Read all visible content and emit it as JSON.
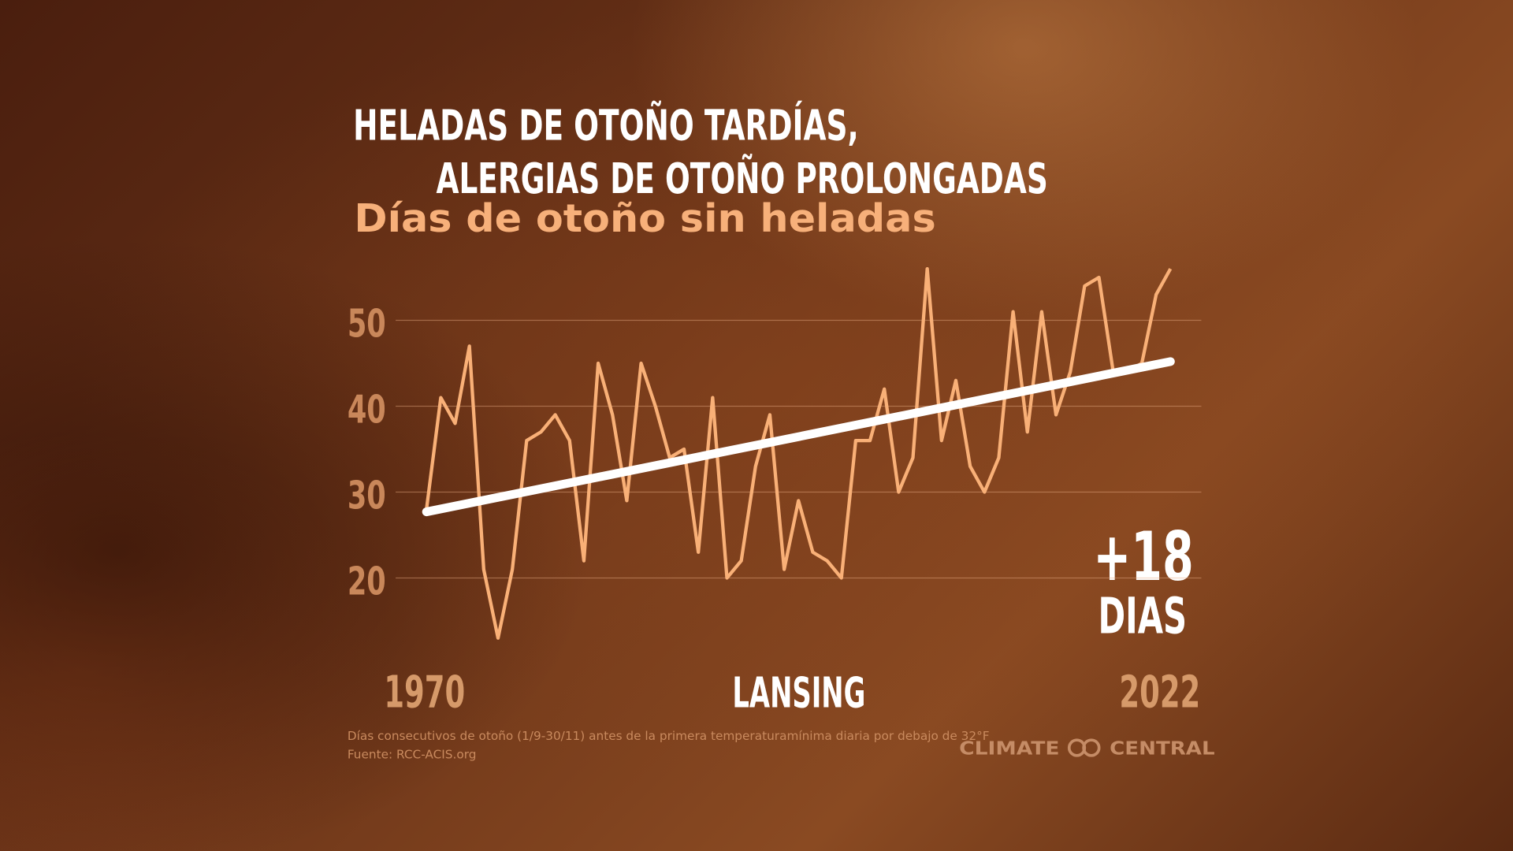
{
  "chart_data": {
    "type": "line",
    "title": [
      "HELADAS DE OTOÑO TARDÍAS,",
      "ALERGIAS DE OTOÑO PROLONGADAS"
    ],
    "subtitle": "Días de otoño sin heladas",
    "x": [
      1970,
      1971,
      1972,
      1973,
      1974,
      1975,
      1976,
      1977,
      1978,
      1979,
      1980,
      1981,
      1982,
      1983,
      1984,
      1985,
      1986,
      1987,
      1988,
      1989,
      1990,
      1991,
      1992,
      1993,
      1994,
      1995,
      1996,
      1997,
      1998,
      1999,
      2000,
      2001,
      2002,
      2003,
      2004,
      2005,
      2006,
      2007,
      2008,
      2009,
      2010,
      2011,
      2012,
      2013,
      2014,
      2015,
      2016,
      2017,
      2018,
      2019,
      2020,
      2021,
      2022
    ],
    "series": [
      {
        "color": "#f9b077",
        "values": [
          28,
          41,
          38,
          47,
          21,
          13,
          21,
          36,
          37,
          39,
          36,
          22,
          45,
          39,
          29,
          45,
          40,
          34,
          35,
          23,
          41,
          20,
          22,
          33,
          39,
          21,
          29,
          23,
          22,
          20,
          36,
          36,
          42,
          30,
          34,
          56,
          36,
          43,
          33,
          30,
          34,
          51,
          37,
          51,
          39,
          44,
          54,
          55,
          44,
          44,
          45,
          53,
          56
        ]
      }
    ],
    "trend": {
      "color": "#ffffff",
      "x": [
        1970,
        2022
      ],
      "values": [
        27.7,
        45.2
      ]
    },
    "xlim": [
      1970,
      2022
    ],
    "xticks": [
      1970,
      2022
    ],
    "ylim": [
      10,
      60
    ],
    "yticks": [
      20,
      30,
      40,
      50
    ],
    "grid": true,
    "annotation": [
      "+18",
      "DIAS"
    ],
    "location": "LANSING",
    "footnote": [
      "Días consecutivos de otoño (1/9-30/11) antes de la primera temperaturamínima diaria por debajo de 32°F",
      "Fuente: RCC-ACIS.org"
    ],
    "logo": [
      "CLIMATE",
      "CENTRAL"
    ]
  }
}
